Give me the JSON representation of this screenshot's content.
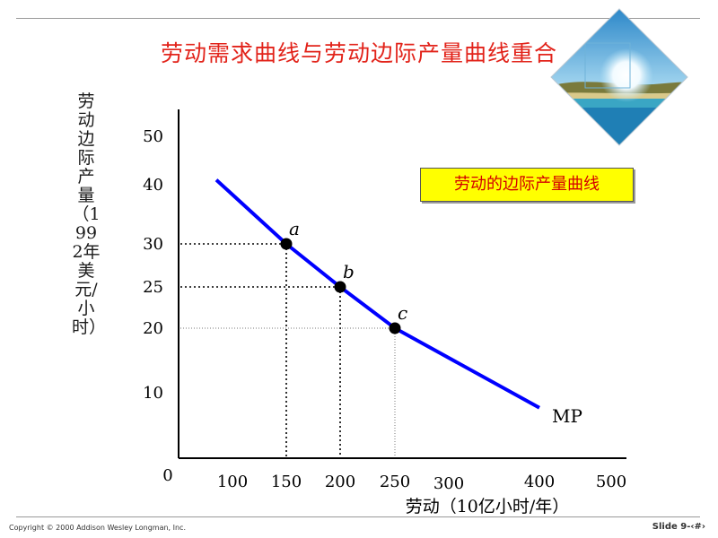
{
  "slide": {
    "title": "劳动需求曲线与劳动边际产量曲线重合",
    "copyright": "Copyright © 2000 Addison Wesley Longman, Inc.",
    "slide_number": "Slide 9-‹#›"
  },
  "chart_data": {
    "type": "line",
    "title": "劳动需求曲线与劳动边际产量曲线重合",
    "xlabel": "劳动（10亿小时/年）",
    "ylabel": "劳动边际产量（1992年美元/小时）",
    "x_ticks": [
      "100",
      "150",
      "200",
      "250",
      "300",
      "400",
      "500"
    ],
    "y_ticks": [
      "10",
      "20",
      "25",
      "30",
      "40",
      "50"
    ],
    "origin_label": "0",
    "series": [
      {
        "name": "MP",
        "color": "#0000ff",
        "x": [
          70,
          150,
          200,
          250,
          400
        ],
        "y": [
          41,
          30,
          25,
          20,
          7.7
        ]
      }
    ],
    "points": [
      {
        "label": "a",
        "x": 150,
        "y": 30
      },
      {
        "label": "b",
        "x": 200,
        "y": 25
      },
      {
        "label": "c",
        "x": 250,
        "y": 20
      }
    ],
    "legend": {
      "label": "劳动的边际产量曲线",
      "placement": "top-right",
      "background": "#ffff00",
      "text_color": "#d40000"
    },
    "grid": false
  }
}
